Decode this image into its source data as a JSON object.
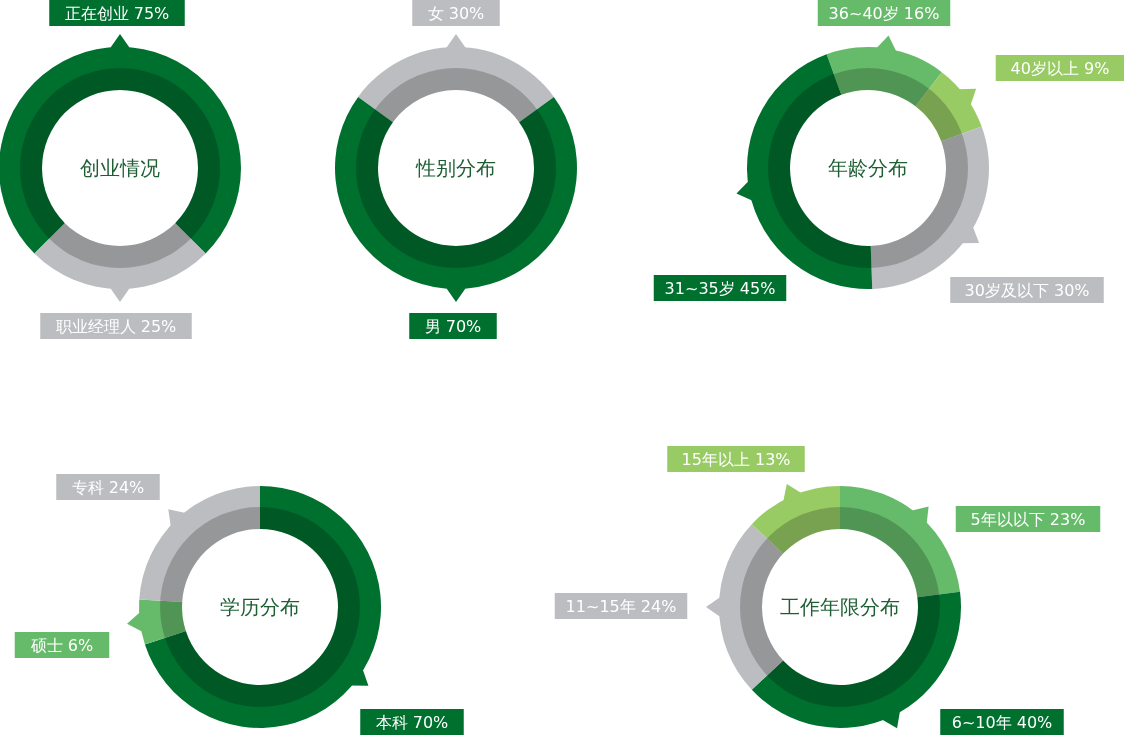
{
  "chart_data": [
    {
      "type": "donut",
      "title": "创业情况",
      "categories": [
        "正在创业",
        "职业经理人"
      ],
      "values": [
        75,
        25
      ],
      "value_labels": [
        "75%",
        "25%"
      ],
      "colors": [
        "#00702f",
        "#bcbdc0"
      ]
    },
    {
      "type": "donut",
      "title": "性别分布",
      "categories": [
        "女",
        "男"
      ],
      "values": [
        30,
        70
      ],
      "value_labels": [
        "30%",
        "70%"
      ],
      "colors": [
        "#bcbdc0",
        "#00702f"
      ]
    },
    {
      "type": "donut",
      "title": "年龄分布",
      "categories": [
        "36~40岁",
        "40岁以上",
        "30岁及以下",
        "31~35岁"
      ],
      "values": [
        16,
        9,
        30,
        45
      ],
      "value_labels": [
        "16%",
        "9%",
        "30%",
        "45%"
      ],
      "colors": [
        "#66bb6a",
        "#98cb64",
        "#bcbdc0",
        "#00702f"
      ]
    },
    {
      "type": "donut",
      "title": "学历分布",
      "categories": [
        "本科",
        "硕士",
        "专科"
      ],
      "values": [
        70,
        6,
        24
      ],
      "value_labels": [
        "70%",
        "6%",
        "24%"
      ],
      "colors": [
        "#00702f",
        "#66bb6a",
        "#bcbdc0"
      ]
    },
    {
      "type": "donut",
      "title": "工作年限分布",
      "categories": [
        "5年以以下",
        "6~10年",
        "11~15年",
        "15年以上"
      ],
      "values": [
        23,
        40,
        24,
        13
      ],
      "value_labels": [
        "23%",
        "40%",
        "24%",
        "13%"
      ],
      "colors": [
        "#66bb6a",
        "#00702f",
        "#bcbdc0",
        "#98cb64"
      ]
    }
  ]
}
